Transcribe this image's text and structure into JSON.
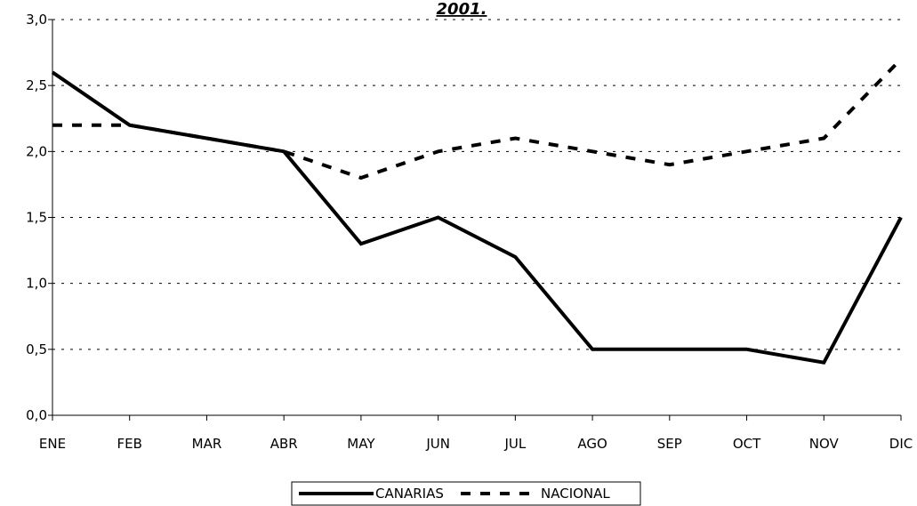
{
  "chart_data": {
    "type": "line",
    "title": "2001.",
    "xlabel": "",
    "ylabel": "",
    "categories": [
      "ENE",
      "FEB",
      "MAR",
      "ABR",
      "MAY",
      "JUN",
      "JUL",
      "AGO",
      "SEP",
      "OCT",
      "NOV",
      "DIC"
    ],
    "y_ticks": [
      "0,0",
      "0,5",
      "1,0",
      "1,5",
      "2,0",
      "2,5",
      "3,0"
    ],
    "ylim": [
      0,
      3
    ],
    "grid": true,
    "legend_position": "bottom",
    "series": [
      {
        "name": "CANARIAS",
        "style": "solid",
        "color": "#000000",
        "values": [
          2.6,
          2.2,
          2.1,
          2.0,
          1.3,
          1.5,
          1.2,
          0.5,
          0.5,
          0.5,
          0.4,
          1.5
        ]
      },
      {
        "name": "NACIONAL",
        "style": "dashed",
        "color": "#000000",
        "values": [
          2.2,
          2.2,
          2.1,
          2.0,
          1.8,
          2.0,
          2.1,
          2.0,
          1.9,
          2.0,
          2.1,
          2.7
        ]
      }
    ]
  }
}
